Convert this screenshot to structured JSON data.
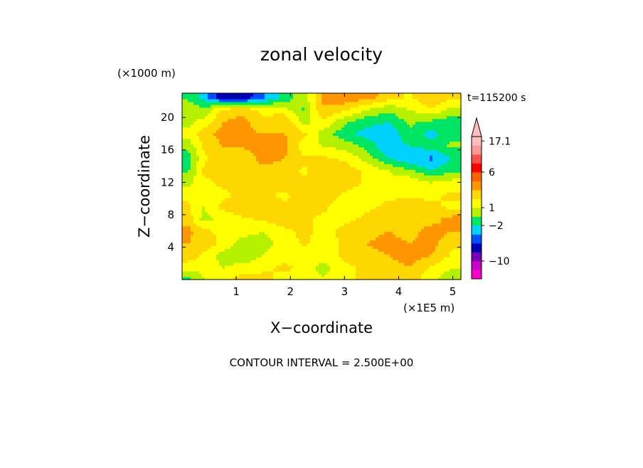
{
  "chart_data": {
    "type": "heatmap",
    "title": "zonal velocity",
    "time_label": "t=115200 s",
    "xlabel": "X−coordinate",
    "ylabel": "Z−coordinate",
    "x_units": "(×1E5 m)",
    "y_units": "(×1000 m)",
    "footer": "CONTOUR INTERVAL = 2.500E+00",
    "xlim": [
      0,
      5.15
    ],
    "ylim": [
      0,
      23
    ],
    "x_ticks": [
      {
        "value": 1,
        "label": "1"
      },
      {
        "value": 2,
        "label": "2"
      },
      {
        "value": 3,
        "label": "3"
      },
      {
        "value": 4,
        "label": "4"
      },
      {
        "value": 5,
        "label": "5"
      }
    ],
    "y_ticks": [
      {
        "value": 4,
        "label": "4"
      },
      {
        "value": 8,
        "label": "8"
      },
      {
        "value": 12,
        "label": "12"
      },
      {
        "value": 16,
        "label": "16"
      },
      {
        "value": 20,
        "label": "20"
      }
    ],
    "colorbar": {
      "colors": [
        "#ff00c8",
        "#c800c8",
        "#7800b4",
        "#0000b4",
        "#0050ff",
        "#00d2ff",
        "#00e664",
        "#b4f000",
        "#ffff00",
        "#ffd700",
        "#ff9600",
        "#ff6400",
        "#ff0000",
        "#ff5050",
        "#ff9696",
        "#ffbebe"
      ],
      "labels": [
        {
          "value": "17.1",
          "band": 15.5
        },
        {
          "value": "6",
          "band": 12.0
        },
        {
          "value": "1",
          "band": 8.0
        },
        {
          "value": "−2",
          "band": 6.0
        },
        {
          "value": "−10",
          "band": 2.0
        }
      ]
    },
    "z_columns": [
      0.1,
      0.4,
      0.75,
      1.1,
      1.5,
      1.9,
      2.25,
      2.6,
      3.0,
      3.4,
      3.8,
      4.2,
      4.6,
      5.0
    ],
    "z_rows": [
      {
        "z": 22.5,
        "values": [
          -3,
          -6,
          -12,
          -12,
          -8,
          -4,
          -1,
          5,
          7,
          6,
          4,
          2,
          5,
          3
        ]
      },
      {
        "z": 21.0,
        "values": [
          0,
          -2,
          3,
          4,
          2,
          1,
          -3,
          5,
          3,
          0,
          -2,
          0,
          2,
          -1
        ]
      },
      {
        "z": 19.5,
        "values": [
          -1,
          1,
          5,
          6,
          3,
          5,
          -1,
          2,
          -2,
          -4,
          -5,
          -2,
          -3,
          -4
        ]
      },
      {
        "z": 18.0,
        "values": [
          1,
          4,
          6,
          6,
          5,
          5,
          3,
          -1,
          -4,
          -6,
          -7,
          -3,
          -6,
          -3
        ]
      },
      {
        "z": 16.5,
        "values": [
          -2,
          3,
          5,
          5,
          7,
          6,
          1,
          0,
          -1,
          -3,
          -7,
          -5,
          -4,
          -2
        ]
      },
      {
        "z": 15.0,
        "values": [
          -4,
          2,
          4,
          3,
          6,
          5,
          3,
          3,
          2,
          -1,
          -5,
          -7,
          -8,
          -5
        ]
      },
      {
        "z": 13.5,
        "values": [
          -3,
          3,
          3,
          4,
          4,
          4,
          2,
          4,
          4,
          2,
          0,
          -2,
          -5,
          -3
        ]
      },
      {
        "z": 12.0,
        "values": [
          -1,
          2,
          3,
          3,
          3,
          4,
          3,
          4,
          4,
          2,
          1,
          2,
          0,
          1
        ]
      },
      {
        "z": 10.5,
        "values": [
          2,
          1,
          2,
          3,
          3,
          2,
          4,
          4,
          2,
          1,
          2,
          2,
          2,
          3
        ]
      },
      {
        "z": 9.0,
        "values": [
          3,
          0,
          3,
          4,
          4,
          3,
          3,
          3,
          1,
          2,
          3,
          4,
          3,
          2
        ]
      },
      {
        "z": 7.5,
        "values": [
          4,
          -1,
          1,
          2,
          3,
          4,
          3,
          2,
          2,
          3,
          4,
          5,
          4,
          6
        ]
      },
      {
        "z": 6.0,
        "values": [
          6,
          3,
          2,
          1,
          0,
          2,
          3,
          2,
          3,
          4,
          5,
          4,
          6,
          5
        ]
      },
      {
        "z": 4.5,
        "values": [
          5,
          4,
          2,
          -1,
          -1,
          1,
          3,
          1,
          3,
          5,
          6,
          5,
          6,
          3
        ]
      },
      {
        "z": 3.0,
        "values": [
          4,
          2,
          -1,
          -2,
          0,
          2,
          0,
          1,
          3,
          4,
          5,
          6,
          5,
          2
        ]
      },
      {
        "z": 1.5,
        "values": [
          1,
          1,
          0,
          1,
          2,
          3,
          2,
          -1,
          2,
          3,
          4,
          5,
          2,
          0
        ]
      },
      {
        "z": 0.3,
        "values": [
          -3,
          0,
          2,
          3,
          3,
          2,
          1,
          0,
          2,
          3,
          3,
          4,
          1,
          -2
        ]
      }
    ]
  }
}
